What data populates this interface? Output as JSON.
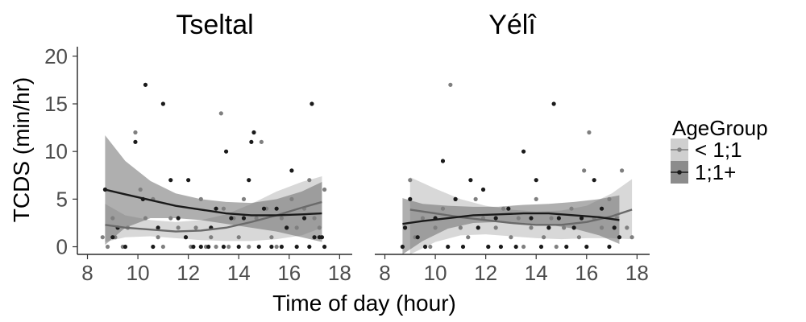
{
  "chart_data": {
    "type": "scatter",
    "xlabel": "Time of day (hour)",
    "ylabel": "TCDS (min/hr)",
    "xlim": [
      7.6,
      18.5
    ],
    "ylim": [
      -0.8,
      21
    ],
    "xticks": [
      8,
      10,
      12,
      14,
      16,
      18
    ],
    "yticks": [
      0,
      5,
      10,
      15,
      20
    ],
    "grid": false,
    "legend": {
      "title": "AgeGroup",
      "position": "right",
      "entries": [
        {
          "label": "< 1;1",
          "point_color": "#7f7f7f",
          "band_color": "#cfcfcf"
        },
        {
          "label": "1;1+",
          "point_color": "#1a1a1a",
          "band_color": "#8c8c8c"
        }
      ]
    },
    "panels": [
      {
        "title": "Tseltal",
        "series": [
          {
            "name": "< 1;1",
            "color": "#7f7f7f",
            "points": [
              [
                8.6,
                1
              ],
              [
                8.8,
                0
              ],
              [
                9.0,
                3
              ],
              [
                9.1,
                1
              ],
              [
                9.4,
                0
              ],
              [
                9.6,
                2
              ],
              [
                9.9,
                12
              ],
              [
                10.1,
                6
              ],
              [
                10.3,
                3
              ],
              [
                10.6,
                5
              ],
              [
                10.8,
                1
              ],
              [
                11.0,
                0
              ],
              [
                11.3,
                3
              ],
              [
                11.6,
                2
              ],
              [
                11.9,
                1
              ],
              [
                12.1,
                0
              ],
              [
                12.3,
                2
              ],
              [
                12.5,
                5
              ],
              [
                12.7,
                0
              ],
              [
                12.9,
                1
              ],
              [
                13.1,
                0
              ],
              [
                13.3,
                14
              ],
              [
                13.4,
                4
              ],
              [
                13.6,
                0
              ],
              [
                13.8,
                3
              ],
              [
                14.0,
                1
              ],
              [
                14.2,
                5
              ],
              [
                14.4,
                0
              ],
              [
                14.7,
                3
              ],
              [
                14.9,
                11
              ],
              [
                15.1,
                4
              ],
              [
                15.3,
                1
              ],
              [
                15.5,
                0
              ],
              [
                15.7,
                3
              ],
              [
                15.9,
                2
              ],
              [
                16.1,
                5
              ],
              [
                16.3,
                2
              ],
              [
                16.6,
                4
              ],
              [
                16.8,
                7
              ],
              [
                17.0,
                3
              ],
              [
                17.2,
                2
              ],
              [
                17.4,
                6
              ]
            ],
            "fit_x": [
              8.7,
              9.5,
              10.5,
              11.5,
              12.5,
              13.5,
              14.5,
              15.5,
              16.5,
              17.3
            ],
            "fit_y": [
              2.3,
              2.0,
              1.8,
              1.6,
              1.7,
              2.0,
              2.6,
              3.3,
              4.1,
              4.7
            ],
            "band_low": [
              0.5,
              1.0,
              1.1,
              0.9,
              0.7,
              0.6,
              0.6,
              0.8,
              1.2,
              2.0
            ],
            "band_high": [
              4.5,
              3.3,
              2.8,
              2.6,
              2.8,
              3.4,
              4.5,
              5.8,
              6.8,
              7.4
            ]
          },
          {
            "name": "1;1+",
            "color": "#1a1a1a",
            "points": [
              [
                8.7,
                6
              ],
              [
                9.0,
                1
              ],
              [
                9.2,
                2
              ],
              [
                9.5,
                0
              ],
              [
                9.9,
                11
              ],
              [
                10.2,
                5
              ],
              [
                10.3,
                17
              ],
              [
                10.6,
                0
              ],
              [
                10.8,
                2
              ],
              [
                11.0,
                15
              ],
              [
                11.3,
                7
              ],
              [
                11.6,
                3
              ],
              [
                11.9,
                1
              ],
              [
                12.0,
                7
              ],
              [
                12.2,
                0
              ],
              [
                12.5,
                0
              ],
              [
                12.8,
                0
              ],
              [
                12.9,
                2
              ],
              [
                13.1,
                4
              ],
              [
                13.4,
                0
              ],
              [
                13.5,
                10
              ],
              [
                13.7,
                3
              ],
              [
                14.0,
                0
              ],
              [
                14.2,
                3
              ],
              [
                14.4,
                7
              ],
              [
                14.5,
                11
              ],
              [
                14.6,
                12
              ],
              [
                14.8,
                0
              ],
              [
                15.0,
                4
              ],
              [
                15.3,
                0
              ],
              [
                15.5,
                4
              ],
              [
                15.7,
                0
              ],
              [
                15.9,
                2
              ],
              [
                16.1,
                8
              ],
              [
                16.3,
                0
              ],
              [
                16.6,
                3
              ],
              [
                16.8,
                0
              ],
              [
                16.9,
                15
              ],
              [
                17.0,
                1
              ],
              [
                17.2,
                1
              ],
              [
                17.3,
                1
              ],
              [
                17.4,
                0
              ]
            ],
            "fit_x": [
              8.7,
              9.5,
              10.5,
              11.5,
              12.5,
              13.5,
              14.5,
              15.5,
              16.5,
              17.3
            ],
            "fit_y": [
              6.0,
              5.5,
              4.9,
              4.3,
              3.9,
              3.5,
              3.3,
              3.3,
              3.4,
              3.5
            ],
            "band_low": [
              0.2,
              2.0,
              3.0,
              3.0,
              2.8,
              2.4,
              2.0,
              1.6,
              1.0,
              0.5
            ],
            "band_high": [
              11.7,
              9.0,
              6.9,
              5.6,
              5.0,
              4.7,
              4.6,
              5.0,
              5.8,
              6.8
            ]
          }
        ]
      },
      {
        "title": "Yélî",
        "series": [
          {
            "name": "< 1;1",
            "color": "#7f7f7f",
            "points": [
              [
                8.8,
                2
              ],
              [
                9.0,
                7
              ],
              [
                9.2,
                1
              ],
              [
                9.5,
                3
              ],
              [
                9.8,
                0
              ],
              [
                10.0,
                2
              ],
              [
                10.3,
                4
              ],
              [
                10.6,
                17
              ],
              [
                10.8,
                5
              ],
              [
                11.0,
                2
              ],
              [
                11.3,
                1
              ],
              [
                11.6,
                5
              ],
              [
                11.9,
                3
              ],
              [
                12.1,
                0
              ],
              [
                12.4,
                2
              ],
              [
                12.7,
                4
              ],
              [
                13.0,
                1
              ],
              [
                13.3,
                3
              ],
              [
                13.5,
                0
              ],
              [
                13.8,
                2
              ],
              [
                14.0,
                5
              ],
              [
                14.3,
                1
              ],
              [
                14.6,
                3
              ],
              [
                14.8,
                0
              ],
              [
                15.1,
                2
              ],
              [
                15.4,
                4
              ],
              [
                15.7,
                1
              ],
              [
                15.9,
                8
              ],
              [
                16.1,
                12
              ],
              [
                16.3,
                3
              ],
              [
                16.6,
                2
              ],
              [
                16.9,
                5
              ],
              [
                17.2,
                3
              ],
              [
                17.4,
                8
              ],
              [
                17.6,
                2
              ],
              [
                17.8,
                1
              ]
            ],
            "fit_x": [
              9.0,
              10.0,
              11.0,
              12.0,
              13.0,
              14.0,
              15.0,
              16.0,
              17.0,
              17.8
            ],
            "fit_y": [
              3.9,
              3.5,
              3.1,
              2.8,
              2.5,
              2.3,
              2.3,
              2.6,
              3.2,
              3.9
            ],
            "band_low": [
              -0.9,
              0.5,
              1.2,
              1.3,
              1.1,
              0.9,
              0.8,
              0.9,
              0.9,
              0.8
            ],
            "band_high": [
              7.3,
              6.1,
              5.0,
              4.3,
              3.9,
              3.7,
              3.8,
              4.3,
              5.6,
              7.1
            ]
          },
          {
            "name": "1;1+",
            "color": "#1a1a1a",
            "points": [
              [
                8.7,
                0
              ],
              [
                8.8,
                2
              ],
              [
                9.0,
                5
              ],
              [
                9.3,
                1
              ],
              [
                9.6,
                0
              ],
              [
                10.0,
                3
              ],
              [
                10.3,
                9
              ],
              [
                10.5,
                0
              ],
              [
                10.8,
                5
              ],
              [
                11.1,
                0
              ],
              [
                11.4,
                7
              ],
              [
                11.7,
                2
              ],
              [
                11.9,
                6
              ],
              [
                12.1,
                0
              ],
              [
                12.4,
                3
              ],
              [
                12.6,
                0
              ],
              [
                12.9,
                4
              ],
              [
                13.2,
                0
              ],
              [
                13.5,
                10
              ],
              [
                13.8,
                3
              ],
              [
                14.0,
                7
              ],
              [
                14.2,
                0
              ],
              [
                14.5,
                2
              ],
              [
                14.7,
                15
              ],
              [
                14.9,
                3
              ],
              [
                15.2,
                0
              ],
              [
                15.5,
                2
              ],
              [
                15.8,
                3
              ],
              [
                16.0,
                0
              ],
              [
                16.3,
                7
              ],
              [
                16.6,
                4
              ],
              [
                16.9,
                0
              ],
              [
                17.1,
                2
              ],
              [
                17.3,
                1
              ]
            ],
            "fit_x": [
              8.7,
              9.5,
              10.5,
              11.5,
              12.5,
              13.5,
              14.5,
              15.5,
              16.5,
              17.3
            ],
            "fit_y": [
              2.4,
              2.7,
              3.0,
              3.3,
              3.4,
              3.5,
              3.5,
              3.3,
              3.1,
              2.8
            ],
            "band_low": [
              -0.9,
              0.6,
              1.9,
              2.5,
              2.6,
              2.5,
              2.3,
              1.9,
              1.2,
              0.3
            ],
            "band_high": [
              5.1,
              4.5,
              4.3,
              4.2,
              4.2,
              4.4,
              4.5,
              4.7,
              5.0,
              5.4
            ]
          }
        ]
      }
    ]
  }
}
